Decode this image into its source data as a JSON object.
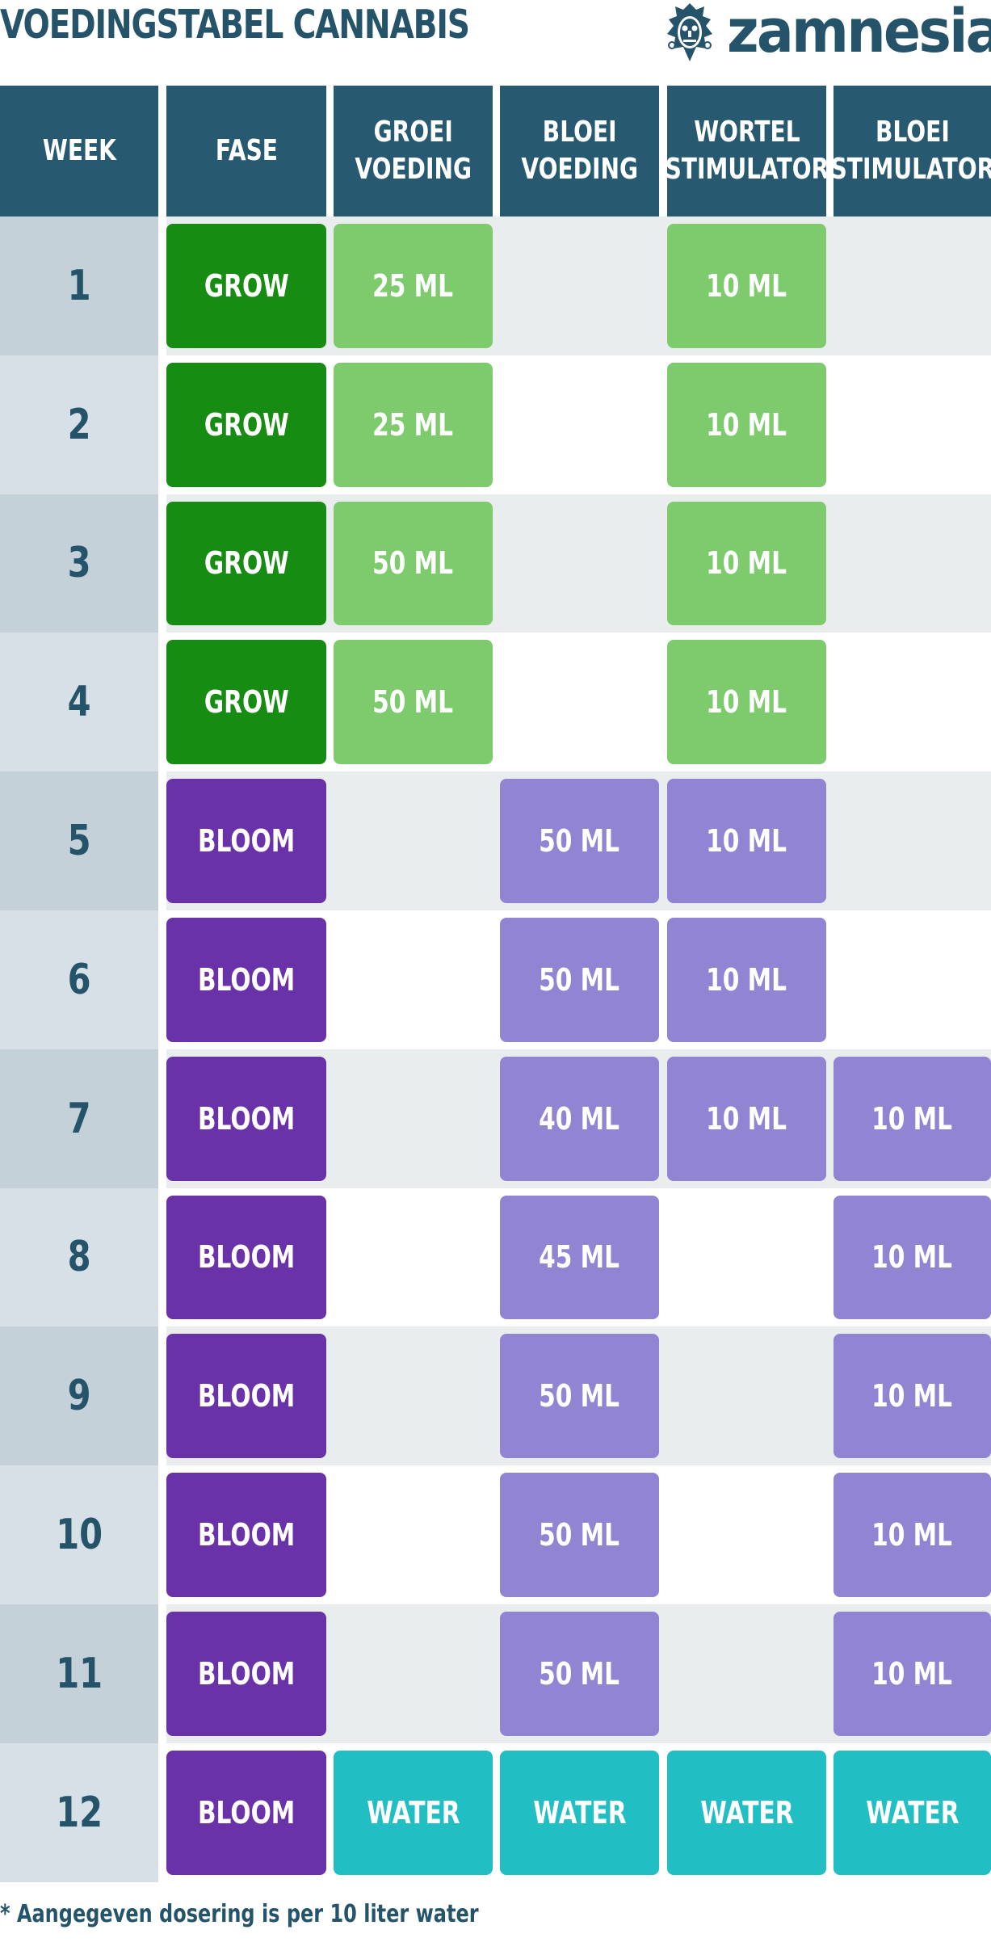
{
  "title": "VOEDINGSTABEL CANNABIS",
  "logo": {
    "text": "zamnesia",
    "icon": "tribal-mask-icon"
  },
  "colors": {
    "header": "#275a71",
    "text": "#25546a",
    "grow": "#168c12",
    "grow_dose": "#7ecb6e",
    "bloom": "#6a32a8",
    "bloom_dose": "#9184d2",
    "water": "#21bfc3"
  },
  "columns": [
    {
      "line1": "WEEK",
      "line2": ""
    },
    {
      "line1": "FASE",
      "line2": ""
    },
    {
      "line1": "GROEI",
      "line2": "VOEDING"
    },
    {
      "line1": "BLOEI",
      "line2": "VOEDING"
    },
    {
      "line1": "WORTEL",
      "line2": "STIMULATOR"
    },
    {
      "line1": "BLOEI",
      "line2": "STIMULATOR"
    }
  ],
  "rows": [
    {
      "week": "1",
      "phase": "GROW",
      "cells": [
        "25 ML",
        "",
        "10 ML",
        ""
      ]
    },
    {
      "week": "2",
      "phase": "GROW",
      "cells": [
        "25 ML",
        "",
        "10 ML",
        ""
      ]
    },
    {
      "week": "3",
      "phase": "GROW",
      "cells": [
        "50 ML",
        "",
        "10 ML",
        ""
      ]
    },
    {
      "week": "4",
      "phase": "GROW",
      "cells": [
        "50 ML",
        "",
        "10 ML",
        ""
      ]
    },
    {
      "week": "5",
      "phase": "BLOOM",
      "cells": [
        "",
        "50 ML",
        "10 ML",
        ""
      ]
    },
    {
      "week": "6",
      "phase": "BLOOM",
      "cells": [
        "",
        "50 ML",
        "10 ML",
        ""
      ]
    },
    {
      "week": "7",
      "phase": "BLOOM",
      "cells": [
        "",
        "40 ML",
        "10 ML",
        "10 ML"
      ]
    },
    {
      "week": "8",
      "phase": "BLOOM",
      "cells": [
        "",
        "45 ML",
        "",
        "10 ML"
      ]
    },
    {
      "week": "9",
      "phase": "BLOOM",
      "cells": [
        "",
        "50 ML",
        "",
        "10 ML"
      ]
    },
    {
      "week": "10",
      "phase": "BLOOM",
      "cells": [
        "",
        "50 ML",
        "",
        "10 ML"
      ]
    },
    {
      "week": "11",
      "phase": "BLOOM",
      "cells": [
        "",
        "50 ML",
        "",
        "10 ML"
      ]
    },
    {
      "week": "12",
      "phase": "BLOOM",
      "cells": [
        "WATER",
        "WATER",
        "WATER",
        "WATER"
      ]
    }
  ],
  "footnote": "* Aangegeven dosering is per 10 liter water"
}
